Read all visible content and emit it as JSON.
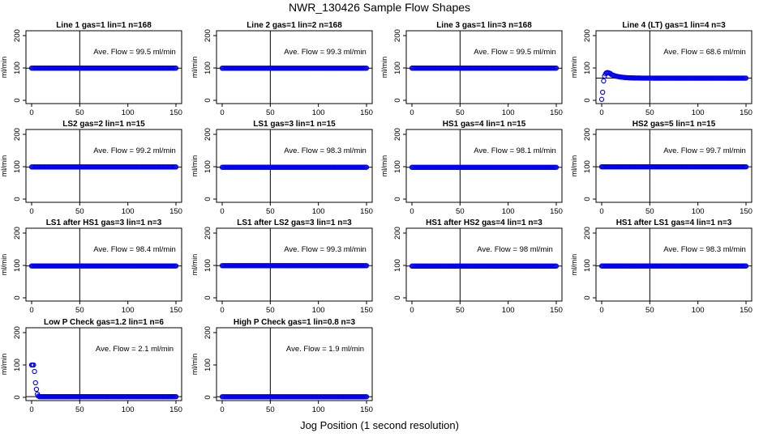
{
  "title": "NWR_130426  Sample Flow Shapes",
  "x_caption": "Jog Position (1 second resolution)",
  "chart_data": [
    {
      "type": "scatter",
      "title": "Line 1 gas=1 lin=1 n=168",
      "ave_label": "Ave. Flow = 99.5  ml/min",
      "ave_flow": 99.5,
      "profile": "flat",
      "xlim": [
        0,
        150
      ],
      "ylim": [
        -10,
        215
      ],
      "xticks": [
        0,
        50,
        100,
        150
      ],
      "yticks": [
        0,
        100,
        200
      ],
      "vline_x": 50,
      "ylabel": "ml/min",
      "color": "#0000ee"
    },
    {
      "type": "scatter",
      "title": "Line 2 gas=1 lin=2 n=168",
      "ave_label": "Ave. Flow = 99.3  ml/min",
      "ave_flow": 99.3,
      "profile": "flat",
      "xlim": [
        0,
        150
      ],
      "ylim": [
        -10,
        215
      ],
      "xticks": [
        0,
        50,
        100,
        150
      ],
      "yticks": [
        0,
        100,
        200
      ],
      "vline_x": 50,
      "ylabel": "ml/min",
      "color": "#0000ee"
    },
    {
      "type": "scatter",
      "title": "Line 3 gas=1 lin=3 n=168",
      "ave_label": "Ave. Flow = 99.5  ml/min",
      "ave_flow": 99.5,
      "profile": "flat",
      "xlim": [
        0,
        150
      ],
      "ylim": [
        -10,
        215
      ],
      "xticks": [
        0,
        50,
        100,
        150
      ],
      "yticks": [
        0,
        100,
        200
      ],
      "vline_x": 50,
      "ylabel": "ml/min",
      "color": "#0000ee"
    },
    {
      "type": "scatter",
      "title": "Line 4 (LT) gas=1 lin=4 n=3",
      "ave_label": "Ave. Flow = 68.6  ml/min",
      "ave_flow": 68.6,
      "profile": "lt",
      "xlim": [
        0,
        150
      ],
      "ylim": [
        -10,
        215
      ],
      "xticks": [
        0,
        50,
        100,
        150
      ],
      "yticks": [
        0,
        100,
        200
      ],
      "vline_x": 50,
      "ylabel": "ml/min",
      "color": "#0000ee"
    },
    {
      "type": "scatter",
      "title": "LS2 gas=2 lin=1 n=15",
      "ave_label": "Ave. Flow = 99.2  ml/min",
      "ave_flow": 99.2,
      "profile": "flat",
      "xlim": [
        0,
        150
      ],
      "ylim": [
        -10,
        215
      ],
      "xticks": [
        0,
        50,
        100,
        150
      ],
      "yticks": [
        0,
        100,
        200
      ],
      "vline_x": 50,
      "ylabel": "ml/min",
      "color": "#0000ee"
    },
    {
      "type": "scatter",
      "title": "LS1 gas=3 lin=1 n=15",
      "ave_label": "Ave. Flow = 98.3  ml/min",
      "ave_flow": 98.3,
      "profile": "flat",
      "xlim": [
        0,
        150
      ],
      "ylim": [
        -10,
        215
      ],
      "xticks": [
        0,
        50,
        100,
        150
      ],
      "yticks": [
        0,
        100,
        200
      ],
      "vline_x": 50,
      "ylabel": "ml/min",
      "color": "#0000ee"
    },
    {
      "type": "scatter",
      "title": "HS1 gas=4 lin=1 n=15",
      "ave_label": "Ave. Flow = 98.1  ml/min",
      "ave_flow": 98.1,
      "profile": "flat",
      "xlim": [
        0,
        150
      ],
      "ylim": [
        -10,
        215
      ],
      "xticks": [
        0,
        50,
        100,
        150
      ],
      "yticks": [
        0,
        100,
        200
      ],
      "vline_x": 50,
      "ylabel": "ml/min",
      "color": "#0000ee"
    },
    {
      "type": "scatter",
      "title": "HS2 gas=5 lin=1 n=15",
      "ave_label": "Ave. Flow = 99.7  ml/min",
      "ave_flow": 99.7,
      "profile": "flat",
      "xlim": [
        0,
        150
      ],
      "ylim": [
        -10,
        215
      ],
      "xticks": [
        0,
        50,
        100,
        150
      ],
      "yticks": [
        0,
        100,
        200
      ],
      "vline_x": 50,
      "ylabel": "ml/min",
      "color": "#0000ee"
    },
    {
      "type": "scatter",
      "title": "LS1 after HS1 gas=3 lin=1 n=3",
      "ave_label": "Ave. Flow = 98.4  ml/min",
      "ave_flow": 98.4,
      "profile": "flat",
      "xlim": [
        0,
        150
      ],
      "ylim": [
        -10,
        215
      ],
      "xticks": [
        0,
        50,
        100,
        150
      ],
      "yticks": [
        0,
        100,
        200
      ],
      "vline_x": 50,
      "ylabel": "ml/min",
      "color": "#0000ee"
    },
    {
      "type": "scatter",
      "title": "LS1 after LS2 gas=3 lin=1 n=3",
      "ave_label": "Ave. Flow = 99.3  ml/min",
      "ave_flow": 99.3,
      "profile": "flat",
      "xlim": [
        0,
        150
      ],
      "ylim": [
        -10,
        215
      ],
      "xticks": [
        0,
        50,
        100,
        150
      ],
      "yticks": [
        0,
        100,
        200
      ],
      "vline_x": 50,
      "ylabel": "ml/min",
      "color": "#0000ee"
    },
    {
      "type": "scatter",
      "title": "HS1 after HS2 gas=4 lin=1 n=3",
      "ave_label": "Ave. Flow = 98  ml/min",
      "ave_flow": 98,
      "profile": "flat",
      "xlim": [
        0,
        150
      ],
      "ylim": [
        -10,
        215
      ],
      "xticks": [
        0,
        50,
        100,
        150
      ],
      "yticks": [
        0,
        100,
        200
      ],
      "vline_x": 50,
      "ylabel": "",
      "color": "#0000ee"
    },
    {
      "type": "scatter",
      "title": "HS1 after LS1 gas=4 lin=1 n=3",
      "ave_label": "Ave. Flow = 98.3  ml/min",
      "ave_flow": 98.3,
      "profile": "flat",
      "xlim": [
        0,
        150
      ],
      "ylim": [
        -10,
        215
      ],
      "xticks": [
        0,
        50,
        100,
        150
      ],
      "yticks": [
        0,
        100,
        200
      ],
      "vline_x": 50,
      "ylabel": "ml/min",
      "color": "#0000ee"
    },
    {
      "type": "scatter",
      "title": "Low P Check gas=1.2 lin=1 n=6",
      "ave_label": "Ave. Flow = 2.1  ml/min",
      "ave_flow": 2.1,
      "profile": "lowp",
      "xlim": [
        0,
        150
      ],
      "ylim": [
        -10,
        215
      ],
      "xticks": [
        0,
        50,
        100,
        150
      ],
      "yticks": [
        0,
        100,
        200
      ],
      "vline_x": 50,
      "ylabel": "ml/min",
      "color": "#0000ee"
    },
    {
      "type": "scatter",
      "title": "High P Check gas=1 lin=0.8 n=3",
      "ave_label": "Ave. Flow = 1.9  ml/min",
      "ave_flow": 1.9,
      "profile": "flat",
      "xlim": [
        0,
        150
      ],
      "ylim": [
        -10,
        215
      ],
      "xticks": [
        0,
        50,
        100,
        150
      ],
      "yticks": [
        0,
        100,
        200
      ],
      "vline_x": 50,
      "ylabel": "ml/min",
      "color": "#0000ee"
    }
  ]
}
